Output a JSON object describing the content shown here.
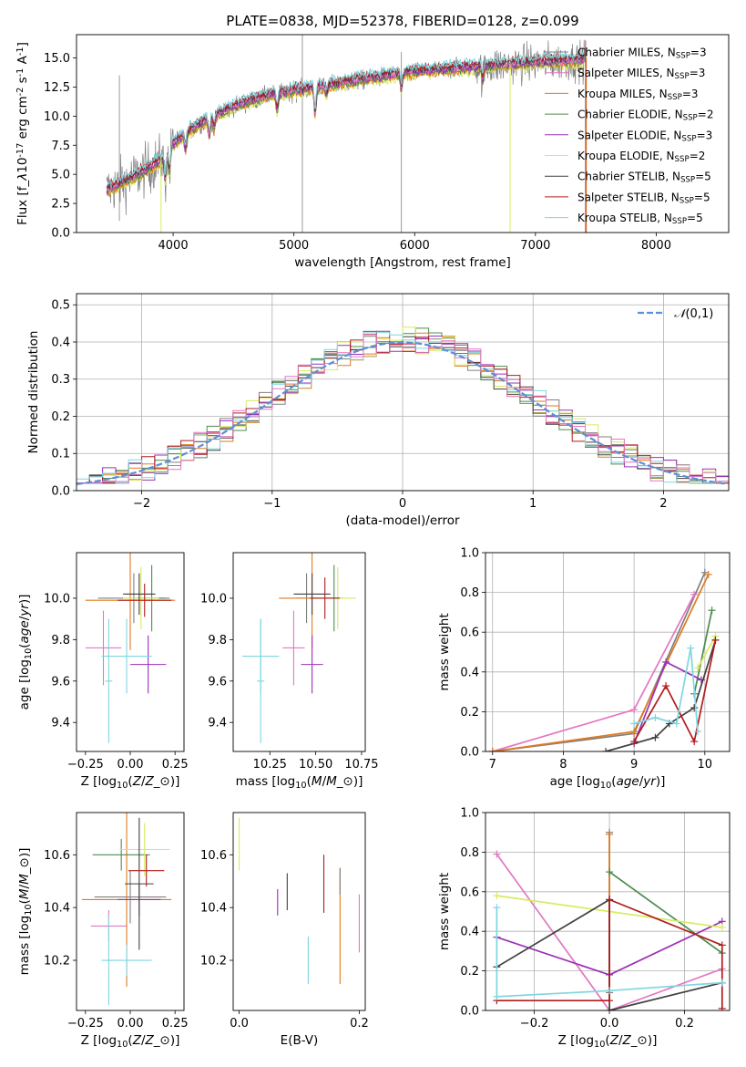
{
  "colors": {
    "chabrier_miles": "#808080",
    "salpeter_miles": "#e377c2",
    "kroupa_miles": "#e07a1f",
    "chabrier_elodie": "#4e8b4e",
    "salpeter_elodie": "#9b30b8",
    "kroupa_elodie": "#d6ec5e",
    "chabrier_stelib": "#404040",
    "salpeter_stelib": "#b01c1c",
    "kroupa_stelib": "#7fd6e0",
    "normal": "#5b8fd6"
  },
  "chart_data": [
    {
      "id": "spectrum",
      "type": "line",
      "title": "PLATE=0838, MJD=52378, FIBERID=0128, z=0.099",
      "xlabel": "wavelength [Angstrom, rest frame]",
      "ylabel": "Flux [f$_\\lambda$10$^{-17}$ erg cm$^{-2}$ s$^{-1}$ A$^{-1}$]",
      "xlim": [
        3200,
        8600
      ],
      "ylim": [
        0,
        17
      ],
      "xticks": [
        "4000",
        "5000",
        "6000",
        "7000",
        "8000"
      ],
      "yticks": [
        "0.0",
        "2.5",
        "5.0",
        "7.5",
        "10.0",
        "12.5",
        "15.0"
      ],
      "legend_position": "upper right",
      "data_x_range": [
        3450,
        7420
      ],
      "continuum": [
        [
          3450,
          3.6
        ],
        [
          3700,
          4.9
        ],
        [
          3900,
          6.2
        ],
        [
          4000,
          7.6
        ],
        [
          4200,
          9.2
        ],
        [
          4500,
          10.8
        ],
        [
          4800,
          11.8
        ],
        [
          5100,
          12.3
        ],
        [
          5500,
          13.0
        ],
        [
          6000,
          13.8
        ],
        [
          6500,
          14.2
        ],
        [
          7000,
          14.6
        ],
        [
          7420,
          14.8
        ]
      ],
      "series": [
        {
          "name": "Chabrier MILES, N$_{SSP}$=3",
          "key": "chabrier_miles"
        },
        {
          "name": "Salpeter MILES, N$_{SSP}$=3",
          "key": "salpeter_miles"
        },
        {
          "name": "Kroupa MILES, N$_{SSP}$=3",
          "key": "kroupa_miles"
        },
        {
          "name": "Chabrier ELODIE, N$_{SSP}$=2",
          "key": "chabrier_elodie"
        },
        {
          "name": "Salpeter ELODIE, N$_{SSP}$=3",
          "key": "salpeter_elodie"
        },
        {
          "name": "Kroupa ELODIE, N$_{SSP}$=2",
          "key": "kroupa_elodie"
        },
        {
          "name": "Chabrier STELIB, N$_{SSP}$=5",
          "key": "chabrier_stelib"
        },
        {
          "name": "Salpeter STELIB, N$_{SSP}$=5",
          "key": "salpeter_stelib"
        },
        {
          "name": "Kroupa STELIB, N$_{SSP}$=5",
          "key": "kroupa_stelib"
        }
      ]
    },
    {
      "id": "residuals",
      "type": "histogram",
      "xlabel": "(data-model)/error",
      "ylabel": "Normed distribution",
      "xlim": [
        -2.5,
        2.5
      ],
      "ylim": [
        0,
        0.53
      ],
      "xticks": [
        "−2",
        "−1",
        "0",
        "1",
        "2"
      ],
      "yticks": [
        "0.0",
        "0.1",
        "0.2",
        "0.3",
        "0.4",
        "0.5"
      ],
      "legend": "$\\mathcal{N}(0,1)$",
      "legend_position": "upper right",
      "bin_width": 0.1
    },
    {
      "id": "age_vs_z",
      "type": "errorbar",
      "xlabel": "Z [log$_{10}$($Z/Z_\\odot$)]",
      "ylabel": "age  [log$_{10}$($age/yr$)]",
      "xlim": [
        -0.3,
        0.3
      ],
      "ylim": [
        9.26,
        10.22
      ],
      "xticks": [
        "−0.25",
        "0.00",
        "0.25"
      ],
      "yticks": [
        "9.4",
        "9.6",
        "9.8",
        "10.0"
      ],
      "points": [
        {
          "key": "chabrier_miles",
          "x": 0.02,
          "y": 10.0,
          "xerr": 0.2,
          "yerr": 0.12
        },
        {
          "key": "salpeter_miles",
          "x": -0.15,
          "y": 9.76,
          "xerr": 0.1,
          "yerr": 0.18
        },
        {
          "key": "kroupa_miles",
          "x": 0.0,
          "y": 9.99,
          "xerr": 0.25,
          "yerr": 0.24
        },
        {
          "key": "chabrier_elodie",
          "x": 0.12,
          "y": 10.0,
          "xerr": 0.08,
          "yerr": 0.16
        },
        {
          "key": "salpeter_elodie",
          "x": 0.1,
          "y": 9.68,
          "xerr": 0.1,
          "yerr": 0.14
        },
        {
          "key": "kroupa_elodie",
          "x": 0.06,
          "y": 10.0,
          "xerr": 0.1,
          "yerr": 0.15
        },
        {
          "key": "chabrier_stelib",
          "x": 0.05,
          "y": 10.02,
          "xerr": 0.09,
          "yerr": 0.1
        },
        {
          "key": "salpeter_stelib",
          "x": 0.08,
          "y": 9.99,
          "xerr": 0.15,
          "yerr": 0.08
        },
        {
          "key": "kroupa_stelib",
          "x": -0.02,
          "y": 9.72,
          "xerr": 0.14,
          "yerr": 0.18
        },
        {
          "key": "kroupa_stelib",
          "x": -0.12,
          "y": 9.6,
          "xerr": 0.02,
          "yerr": 0.3
        }
      ]
    },
    {
      "id": "age_vs_mass",
      "type": "errorbar",
      "xlabel": "mass [log$_{10}$($M/M_\\odot$)]",
      "ylabel": "",
      "xlim": [
        10.05,
        10.77
      ],
      "ylim": [
        9.26,
        10.22
      ],
      "xticks": [
        "10.25",
        "10.50",
        "10.75"
      ],
      "yticks": [
        "9.4",
        "9.6",
        "9.8",
        "10.0"
      ],
      "points": [
        {
          "key": "chabrier_miles",
          "x": 10.45,
          "y": 10.0,
          "xerr": 0.06,
          "yerr": 0.12
        },
        {
          "key": "salpeter_miles",
          "x": 10.38,
          "y": 9.76,
          "xerr": 0.06,
          "yerr": 0.18
        },
        {
          "key": "kroupa_miles",
          "x": 10.48,
          "y": 10.0,
          "xerr": 0.18,
          "yerr": 0.24
        },
        {
          "key": "chabrier_elodie",
          "x": 10.6,
          "y": 10.0,
          "xerr": 0.04,
          "yerr": 0.16
        },
        {
          "key": "salpeter_elodie",
          "x": 10.48,
          "y": 9.68,
          "xerr": 0.06,
          "yerr": 0.14
        },
        {
          "key": "kroupa_elodie",
          "x": 10.62,
          "y": 10.0,
          "xerr": 0.1,
          "yerr": 0.15
        },
        {
          "key": "chabrier_stelib",
          "x": 10.48,
          "y": 10.02,
          "xerr": 0.1,
          "yerr": 0.1
        },
        {
          "key": "salpeter_stelib",
          "x": 10.55,
          "y": 10.0,
          "xerr": 0.08,
          "yerr": 0.1
        },
        {
          "key": "kroupa_stelib",
          "x": 10.2,
          "y": 9.72,
          "xerr": 0.1,
          "yerr": 0.18
        },
        {
          "key": "kroupa_stelib",
          "x": 10.2,
          "y": 9.6,
          "xerr": 0.02,
          "yerr": 0.3
        }
      ]
    },
    {
      "id": "mass_weight_vs_age",
      "type": "line",
      "xlabel": "age  [log$_{10}$($age/yr$)]",
      "ylabel": "mass weight",
      "xlim": [
        6.9,
        10.35
      ],
      "ylim": [
        0,
        1.0
      ],
      "xticks": [
        "7",
        "8",
        "9",
        "10"
      ],
      "yticks": [
        "0.0",
        "0.2",
        "0.4",
        "0.6",
        "0.8",
        "1.0"
      ],
      "series": [
        {
          "key": "chabrier_miles",
          "x": [
            7.0,
            9.0,
            10.0
          ],
          "y": [
            0.0,
            0.09,
            0.9
          ]
        },
        {
          "key": "salpeter_miles",
          "x": [
            7.0,
            9.0,
            9.85
          ],
          "y": [
            0.0,
            0.21,
            0.79
          ]
        },
        {
          "key": "kroupa_miles",
          "x": [
            7.0,
            9.0,
            10.05
          ],
          "y": [
            0.0,
            0.1,
            0.89
          ]
        },
        {
          "key": "chabrier_elodie",
          "x": [
            9.85,
            10.1
          ],
          "y": [
            0.29,
            0.71
          ]
        },
        {
          "key": "salpeter_elodie",
          "x": [
            9.0,
            9.45,
            9.95
          ],
          "y": [
            0.04,
            0.45,
            0.36
          ]
        },
        {
          "key": "kroupa_elodie",
          "x": [
            9.9,
            10.15
          ],
          "y": [
            0.42,
            0.58
          ]
        },
        {
          "key": "chabrier_stelib",
          "x": [
            8.6,
            9.3,
            9.5,
            9.85,
            10.15
          ],
          "y": [
            0.0,
            0.07,
            0.14,
            0.22,
            0.56
          ]
        },
        {
          "key": "salpeter_stelib",
          "x": [
            9.0,
            9.45,
            9.85,
            10.15
          ],
          "y": [
            0.05,
            0.33,
            0.05,
            0.56
          ]
        },
        {
          "key": "kroupa_stelib",
          "x": [
            9.0,
            9.3,
            9.6,
            9.8,
            9.9
          ],
          "y": [
            0.14,
            0.17,
            0.14,
            0.52,
            0.1
          ]
        }
      ]
    },
    {
      "id": "mass_vs_z",
      "type": "errorbar",
      "xlabel": "Z [log$_{10}$($Z/Z_\\odot$)]",
      "ylabel": "mass [log$_{10}$($M/M_\\odot$)]",
      "xlim": [
        -0.3,
        0.3
      ],
      "ylim": [
        10.01,
        10.76
      ],
      "xticks": [
        "−0.25",
        "0.00",
        "0.25"
      ],
      "yticks": [
        "10.2",
        "10.4",
        "10.6"
      ],
      "points": [
        {
          "key": "chabrier_miles",
          "x": 0.0,
          "y": 10.44,
          "xerr": 0.2,
          "yerr": 0.1
        },
        {
          "key": "salpeter_miles",
          "x": -0.12,
          "y": 10.33,
          "xerr": 0.1,
          "yerr": 0.06
        },
        {
          "key": "kroupa_miles",
          "x": -0.02,
          "y": 10.43,
          "xerr": 0.25,
          "yerr": 0.33
        },
        {
          "key": "chabrier_elodie",
          "x": -0.05,
          "y": 10.6,
          "xerr": 0.16,
          "yerr": 0.06
        },
        {
          "key": "salpeter_elodie",
          "x": 0.05,
          "y": 10.43,
          "xerr": 0.12,
          "yerr": 0.06
        },
        {
          "key": "kroupa_elodie",
          "x": 0.08,
          "y": 10.62,
          "xerr": 0.14,
          "yerr": 0.1
        },
        {
          "key": "chabrier_stelib",
          "x": 0.05,
          "y": 10.49,
          "xerr": 0.08,
          "yerr": 0.25
        },
        {
          "key": "salpeter_stelib",
          "x": 0.09,
          "y": 10.54,
          "xerr": 0.1,
          "yerr": 0.06
        },
        {
          "key": "kroupa_stelib",
          "x": -0.02,
          "y": 10.2,
          "xerr": 0.14,
          "yerr": 0.06
        },
        {
          "key": "kroupa_stelib",
          "x": -0.12,
          "y": 10.2,
          "xerr": 0.02,
          "yerr": 0.17
        }
      ]
    },
    {
      "id": "mass_vs_ebv",
      "type": "errorbar",
      "xlabel": "E(B-V)",
      "ylabel": "",
      "xlim": [
        -0.01,
        0.21
      ],
      "ylim": [
        10.01,
        10.76
      ],
      "xticks": [
        "0.0",
        "0.2"
      ],
      "yticks": [
        "10.2",
        "10.4",
        "10.6"
      ],
      "points": [
        {
          "key": "kroupa_elodie",
          "x": 0.0,
          "y": 10.64,
          "xerr": 0.0,
          "yerr": 0.1
        },
        {
          "key": "salpeter_elodie",
          "x": 0.064,
          "y": 10.42,
          "xerr": 0.0,
          "yerr": 0.05
        },
        {
          "key": "chabrier_stelib",
          "x": 0.08,
          "y": 10.46,
          "xerr": 0.0,
          "yerr": 0.07
        },
        {
          "key": "kroupa_stelib",
          "x": 0.115,
          "y": 10.2,
          "xerr": 0.0,
          "yerr": 0.09
        },
        {
          "key": "salpeter_stelib",
          "x": 0.141,
          "y": 10.49,
          "xerr": 0.0,
          "yerr": 0.11
        },
        {
          "key": "kroupa_miles",
          "x": 0.168,
          "y": 10.33,
          "xerr": 0.0,
          "yerr": 0.22
        },
        {
          "key": "chabrier_miles",
          "x": 0.168,
          "y": 10.5,
          "xerr": 0.0,
          "yerr": 0.05
        },
        {
          "key": "salpeter_miles",
          "x": 0.2,
          "y": 10.34,
          "xerr": 0.0,
          "yerr": 0.11
        }
      ]
    },
    {
      "id": "mass_weight_vs_z",
      "type": "line",
      "xlabel": "Z [log$_{10}$($Z/Z_\\odot$)]",
      "ylabel": "mass weight",
      "xlim": [
        -0.33,
        0.32
      ],
      "ylim": [
        0,
        1.0
      ],
      "xticks": [
        "−0.2",
        "0.0",
        "0.2"
      ],
      "yticks": [
        "0.0",
        "0.2",
        "0.4",
        "0.6",
        "0.8",
        "1.0"
      ],
      "series": [
        {
          "key": "chabrier_miles",
          "x": [
            0.0,
            0.0
          ],
          "y": [
            0.09,
            0.9
          ]
        },
        {
          "key": "salpeter_miles",
          "x": [
            -0.3,
            0.0,
            0.3
          ],
          "y": [
            0.79,
            0.0,
            0.21
          ]
        },
        {
          "key": "kroupa_miles",
          "x": [
            0.0,
            0.0
          ],
          "y": [
            0.1,
            0.89
          ]
        },
        {
          "key": "chabrier_elodie",
          "x": [
            0.0,
            0.3
          ],
          "y": [
            0.7,
            0.29
          ]
        },
        {
          "key": "salpeter_elodie",
          "x": [
            -0.3,
            0.0,
            0.3
          ],
          "y": [
            0.37,
            0.18,
            0.45
          ]
        },
        {
          "key": "kroupa_elodie",
          "x": [
            -0.3,
            0.3
          ],
          "y": [
            0.58,
            0.42
          ]
        },
        {
          "key": "chabrier_stelib",
          "x": [
            -0.3,
            0.0,
            0.0,
            0.3,
            0.3
          ],
          "y": [
            0.22,
            0.56,
            0.0,
            0.14,
            0.14
          ]
        },
        {
          "key": "salpeter_stelib",
          "x": [
            -0.3,
            0.0,
            0.0,
            0.3,
            0.3
          ],
          "y": [
            0.05,
            0.05,
            0.56,
            0.33,
            0.01
          ]
        },
        {
          "key": "kroupa_stelib",
          "x": [
            -0.3,
            -0.3,
            0.0,
            0.3,
            0.3
          ],
          "y": [
            0.52,
            0.07,
            0.1,
            0.14,
            0.14
          ]
        }
      ]
    }
  ]
}
